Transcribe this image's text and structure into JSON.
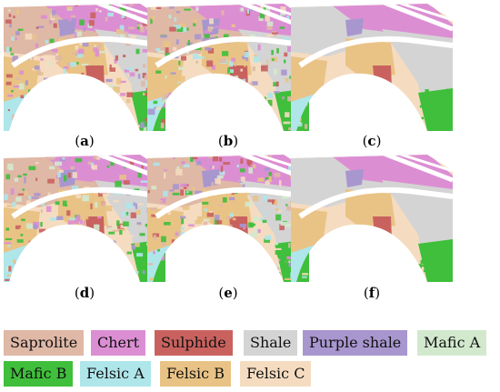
{
  "panels": [
    {
      "id": "a",
      "caption_open": "(",
      "caption_letter": "a",
      "caption_close": ")",
      "scheme": "dense"
    },
    {
      "id": "b",
      "caption_open": "(",
      "caption_letter": "b",
      "caption_close": ")",
      "scheme": "dense"
    },
    {
      "id": "c",
      "caption_open": "(",
      "caption_letter": "c",
      "caption_close": ")",
      "scheme": "smooth"
    },
    {
      "id": "d",
      "caption_open": "(",
      "caption_letter": "d",
      "caption_close": ")",
      "scheme": "dense"
    },
    {
      "id": "e",
      "caption_open": "(",
      "caption_letter": "e",
      "caption_close": ")",
      "scheme": "dense"
    },
    {
      "id": "f",
      "caption_open": "(",
      "caption_letter": "f",
      "caption_close": ")",
      "scheme": "smooth"
    }
  ],
  "legend": [
    {
      "label": "Saprolite",
      "color": "#dfb8a6"
    },
    {
      "label": "Chert",
      "color": "#dc8ed3"
    },
    {
      "label": "Sulphide",
      "color": "#c9625f"
    },
    {
      "label": "Shale",
      "color": "#d4d4d4"
    },
    {
      "label": "Purple shale",
      "color": "#a896cf"
    },
    {
      "label": "Mafic A",
      "color": "#d3e9ce"
    },
    {
      "label": "Mafic B",
      "color": "#3fbf3b"
    },
    {
      "label": "Felsic A",
      "color": "#aee6ea"
    },
    {
      "label": "Felsic B",
      "color": "#e9c385"
    },
    {
      "label": "Felsic C",
      "color": "#f5dcc0"
    }
  ]
}
